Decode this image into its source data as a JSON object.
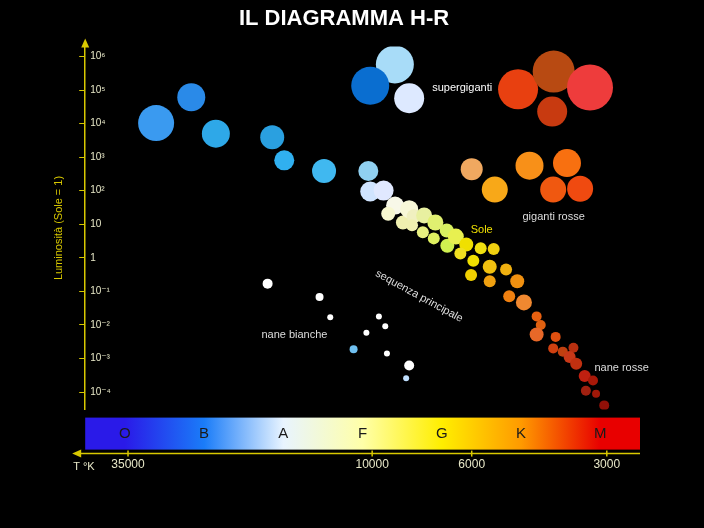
{
  "chart_data": {
    "type": "bubble",
    "title": "IL DIAGRAMMA H-R",
    "x_label": "T °K",
    "y_label": "Luminosità (Sole = 1)",
    "log": true,
    "grid": false,
    "xlim": [
      43600,
      2530
    ],
    "xticks": [
      35000,
      10000,
      6000,
      3000
    ],
    "ylim": [
      3e-05,
      2000000
    ],
    "yticks": [
      {
        "value": 1000000,
        "label": "10⁶"
      },
      {
        "value": 100000,
        "label": "10⁵"
      },
      {
        "value": 10000,
        "label": "10⁴"
      },
      {
        "value": 1000,
        "label": "10³"
      },
      {
        "value": 100,
        "label": "10²"
      },
      10,
      1,
      {
        "value": 0.1,
        "label": "10⁻¹"
      },
      {
        "value": 0.01,
        "label": "10⁻²"
      },
      {
        "value": 0.001,
        "label": "10⁻³"
      },
      {
        "value": 0.0001,
        "label": "10⁻⁴"
      }
    ],
    "series": [
      {
        "x": [
          8900,
          10100,
          8270,
          25300,
          30300,
          4730,
          3940,
          3270,
          3970,
          6000,
          5330,
          4460,
          3680,
          3950,
          3440,
          22300,
          16700,
          15700,
          12800,
          10200,
          10100,
          9430,
          8890,
          9210,
          8540,
          8270,
          8080,
          8150,
          7660,
          7710,
          7230,
          7290,
          6820,
          6800,
          6510,
          6170,
          6360,
          5950,
          5730,
          5360,
          6020,
          5470,
          5030,
          5470,
          4750,
          4950,
          4590,
          4300,
          4210,
          4300,
          3900,
          3950,
          3760,
          3560,
          3630,
          3510,
          3360,
          3220,
          3340,
          3170,
          3040,
          17100,
          13100,
          12400,
          9660,
          9350,
          10300,
          11000,
          9270,
          8270,
          8400
        ],
        "y": [
          580000,
          134000,
          57000,
          61000,
          10400,
          105000,
          355000,
          119000,
          22900,
          440,
          108,
          557,
          668,
          108,
          114,
          5000,
          3920,
          804,
          386,
          386,
          95,
          101,
          36,
          20.7,
          11.3,
          28.2,
          17.3,
          9.4,
          18.4,
          5.8,
          11.3,
          3.8,
          6.5,
          2.3,
          4.3,
          2.5,
          1.34,
          0.82,
          1.93,
          1.82,
          0.31,
          0.54,
          0.45,
          0.2,
          0.2,
          0.072,
          0.047,
          0.018,
          0.01,
          0.0052,
          0.0044,
          0.002,
          0.0016,
          0.0021,
          0.0011,
          0.0007,
          0.0003,
          0.00022,
          0.00011,
          8.9e-05,
          4e-05,
          0.17,
          0.068,
          0.017,
          0.018,
          0.0091,
          0.0059,
          0.0019,
          0.0014,
          0.00062,
          0.00026
        ],
        "sizes": [
          19,
          19,
          15,
          14,
          18,
          20,
          21,
          23,
          15,
          11,
          13,
          14,
          14,
          13,
          13,
          14,
          12,
          10,
          12,
          10,
          10,
          10,
          9,
          7,
          7,
          9,
          7,
          6,
          8,
          6,
          8,
          6,
          7,
          7,
          8,
          7,
          6,
          6,
          6,
          6,
          6,
          7,
          6,
          6,
          7,
          6,
          8,
          5,
          5,
          7,
          5,
          5,
          5,
          5,
          6,
          6,
          6,
          5,
          5,
          4,
          5,
          5,
          4,
          3,
          3,
          3,
          3,
          4,
          3,
          5,
          3
        ],
        "colors": [
          "#a8dcf8",
          "#0a6ed0",
          "#dde9ff",
          "#2a8ae8",
          "#3a9af0",
          "#e84010",
          "#b84a12",
          "#ee3c3c",
          "#c83a10",
          "#f0a860",
          "#f8a818",
          "#f89018",
          "#f87010",
          "#f05810",
          "#f04a10",
          "#2ea8e8",
          "#2aa0e0",
          "#30b0f0",
          "#40b8f0",
          "#90d0f0",
          "#d0e4ff",
          "#e0e8ff",
          "#f8f8e8",
          "#f8f8d0",
          "#f0f0b0",
          "#f8f8d8",
          "#f0f0c0",
          "#f0f0b0",
          "#e8f0a0",
          "#e8f080",
          "#e0f070",
          "#e0f060",
          "#d8f060",
          "#d0f050",
          "#e8f050",
          "#f0e000",
          "#f0e020",
          "#f0e000",
          "#f0e010",
          "#f0d010",
          "#f0d000",
          "#f0c010",
          "#f0b010",
          "#f0a010",
          "#f09010",
          "#f08010",
          "#f08830",
          "#e86010",
          "#e06010",
          "#e86828",
          "#e05010",
          "#d04010",
          "#c04010",
          "#b83010",
          "#c83818",
          "#c03010",
          "#c02010",
          "#a81808",
          "#a02010",
          "#a01808",
          "#901008",
          "#ffffff",
          "#ffffff",
          "#ffffff",
          "#ffffff",
          "#ffffff",
          "#ffffff",
          "#70c0f0",
          "#ffffff",
          "#ffffff",
          "#c0e0ff"
        ]
      }
    ],
    "annotations": [
      {
        "text": "supergiganti",
        "x": 6300,
        "y": 112000,
        "color": "#ffffff"
      },
      {
        "text": "giganti rosse",
        "x": 3940,
        "y": 17,
        "color": "#dddddd"
      },
      {
        "text": "Sole",
        "x": 5700,
        "y": 7,
        "color": "#f0e000"
      },
      {
        "text": "sequenza principale",
        "x": 7860,
        "y": 0.072,
        "color": "#dddddd"
      },
      {
        "text": "nane bianche",
        "x": 14900,
        "y": 0.0052,
        "color": "#dddddd"
      },
      {
        "text": "nane rosse",
        "x": 2780,
        "y": 0.00052,
        "color": "#dddddd"
      }
    ],
    "spectral_classes": {
      "labels": [
        "O",
        "B",
        "A",
        "F",
        "G",
        "K",
        "M"
      ],
      "colors": [
        "#2a1ae8",
        "#1a7cf8",
        "#e8f4ff",
        "#ffffa8",
        "#ffee00",
        "#ff9a00",
        "#e80000"
      ]
    }
  }
}
